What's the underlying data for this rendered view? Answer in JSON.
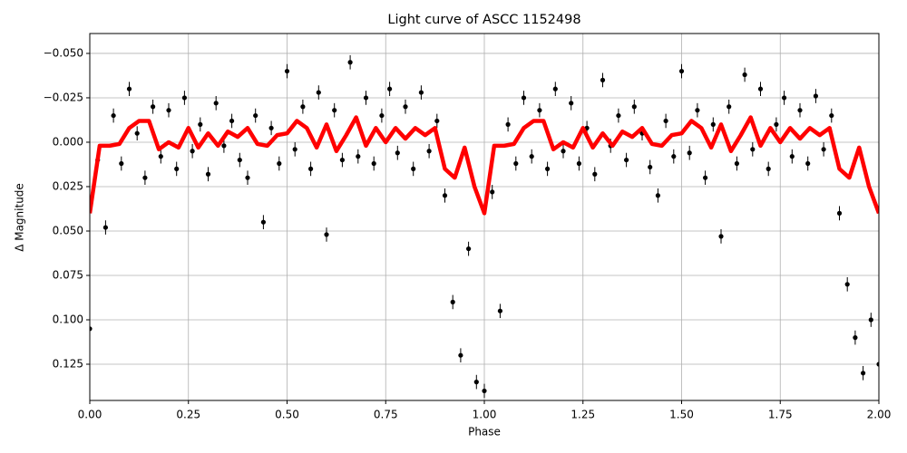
{
  "chart_data": {
    "type": "scatter",
    "title": "Light curve of ASCC 1152498",
    "xlabel": "Phase",
    "ylabel": "Δ Magnitude",
    "xlim": [
      0,
      2
    ],
    "ylim": [
      -0.0612,
      0.1454
    ],
    "y_inverted": true,
    "grid": true,
    "xticks": [
      {
        "value": 0,
        "label": "0.00"
      },
      {
        "value": 0.25,
        "label": "0.25"
      },
      {
        "value": 0.5,
        "label": "0.50"
      },
      {
        "value": 0.75,
        "label": "0.75"
      },
      {
        "value": 1,
        "label": "1.00"
      },
      {
        "value": 1.25,
        "label": "1.25"
      },
      {
        "value": 1.5,
        "label": "1.50"
      },
      {
        "value": 1.75,
        "label": "1.75"
      },
      {
        "value": 2,
        "label": "2.00"
      }
    ],
    "yticks": [
      {
        "value": -0.05,
        "label": "−0.050"
      },
      {
        "value": -0.025,
        "label": "−0.025"
      },
      {
        "value": 0,
        "label": "0.000"
      },
      {
        "value": 0.025,
        "label": "0.025"
      },
      {
        "value": 0.05,
        "label": "0.050"
      },
      {
        "value": 0.075,
        "label": "0.075"
      },
      {
        "value": 0.1,
        "label": "0.100"
      },
      {
        "value": 0.125,
        "label": "0.125"
      }
    ],
    "series": [
      {
        "kind": "points",
        "color": "#000000",
        "x": [
          0,
          0.02,
          0.04,
          0.06,
          0.08,
          0.1,
          0.12,
          0.14,
          0.16,
          0.18,
          0.2,
          0.22,
          0.24,
          0.26,
          0.28,
          0.3,
          0.32,
          0.34,
          0.36,
          0.38,
          0.4,
          0.42,
          0.44,
          0.46,
          0.48,
          0.5,
          0.52,
          0.54,
          0.56,
          0.58,
          0.6,
          0.62,
          0.64,
          0.66,
          0.68,
          0.7,
          0.72,
          0.74,
          0.76,
          0.78,
          0.8,
          0.82,
          0.84,
          0.86,
          0.88,
          0.9,
          0.92,
          0.94,
          0.96,
          0.98,
          1,
          1.02,
          1.04,
          1.06,
          1.08,
          1.1,
          1.12,
          1.14,
          1.16,
          1.18,
          1.2,
          1.22,
          1.24,
          1.26,
          1.28,
          1.3,
          1.32,
          1.34,
          1.36,
          1.38,
          1.4,
          1.42,
          1.44,
          1.46,
          1.48,
          1.5,
          1.52,
          1.54,
          1.56,
          1.58,
          1.6,
          1.62,
          1.64,
          1.66,
          1.68,
          1.7,
          1.72,
          1.74,
          1.76,
          1.78,
          1.8,
          1.82,
          1.84,
          1.86,
          1.88,
          1.9,
          1.92,
          1.94,
          1.96,
          1.98,
          2
        ],
        "values": [
          0.105,
          0.01,
          0.048,
          -0.015,
          0.012,
          -0.03,
          -0.005,
          0.02,
          -0.02,
          0.008,
          -0.018,
          0.015,
          -0.025,
          0.005,
          -0.01,
          0.018,
          -0.022,
          0.002,
          -0.012,
          0.01,
          0.02,
          -0.015,
          0.045,
          -0.008,
          0.012,
          -0.04,
          0.004,
          -0.02,
          0.015,
          -0.028,
          0.052,
          -0.018,
          0.01,
          -0.045,
          0.008,
          -0.025,
          0.012,
          -0.015,
          -0.03,
          0.006,
          -0.02,
          0.015,
          -0.028,
          0.005,
          -0.012,
          0.03,
          0.09,
          0.12,
          0.06,
          0.135,
          0.14,
          0.028,
          0.095,
          -0.01,
          0.012,
          -0.025,
          0.008,
          -0.018,
          0.015,
          -0.03,
          0.005,
          -0.022,
          0.012,
          -0.008,
          0.018,
          -0.035,
          0.002,
          -0.015,
          0.01,
          -0.02,
          -0.005,
          0.014,
          0.03,
          -0.012,
          0.008,
          -0.04,
          0.006,
          -0.018,
          0.02,
          -0.01,
          0.053,
          -0.02,
          0.012,
          -0.038,
          0.004,
          -0.03,
          0.015,
          -0.01,
          -0.025,
          0.008,
          -0.018,
          0.012,
          -0.026,
          0.004,
          -0.015,
          0.04,
          0.08,
          0.11,
          0.13,
          0.1,
          0.125
        ],
        "errors": [
          0.004,
          0.004,
          0.004,
          0.004,
          0.004,
          0.004,
          0.004,
          0.004,
          0.004,
          0.004,
          0.004,
          0.004,
          0.004,
          0.004,
          0.004,
          0.004,
          0.004,
          0.004,
          0.004,
          0.004,
          0.004,
          0.004,
          0.004,
          0.004,
          0.004,
          0.004,
          0.004,
          0.004,
          0.004,
          0.004,
          0.004,
          0.004,
          0.004,
          0.004,
          0.004,
          0.004,
          0.004,
          0.004,
          0.004,
          0.004,
          0.004,
          0.004,
          0.004,
          0.004,
          0.004,
          0.004,
          0.004,
          0.004,
          0.004,
          0.004,
          0.004,
          0.004,
          0.004,
          0.004,
          0.004,
          0.004,
          0.004,
          0.004,
          0.004,
          0.004,
          0.004,
          0.004,
          0.004,
          0.004,
          0.004,
          0.004,
          0.004,
          0.004,
          0.004,
          0.004,
          0.004,
          0.004,
          0.004,
          0.004,
          0.004,
          0.004,
          0.004,
          0.004,
          0.004,
          0.004,
          0.004,
          0.004,
          0.004,
          0.004,
          0.004,
          0.004,
          0.004,
          0.004,
          0.004,
          0.004,
          0.004,
          0.004,
          0.004,
          0.004,
          0.004,
          0.004,
          0.004,
          0.004,
          0.004,
          0.004,
          0.004
        ]
      },
      {
        "kind": "line",
        "color": "#ff0000",
        "x": [
          0,
          0.025,
          0.05,
          0.075,
          0.1,
          0.125,
          0.15,
          0.175,
          0.2,
          0.225,
          0.25,
          0.275,
          0.3,
          0.325,
          0.35,
          0.375,
          0.4,
          0.425,
          0.45,
          0.475,
          0.5,
          0.525,
          0.55,
          0.575,
          0.6,
          0.625,
          0.65,
          0.675,
          0.7,
          0.725,
          0.75,
          0.775,
          0.8,
          0.825,
          0.85,
          0.875,
          0.9,
          0.925,
          0.95,
          0.975,
          1,
          1.025,
          1.05,
          1.075,
          1.1,
          1.125,
          1.15,
          1.175,
          1.2,
          1.225,
          1.25,
          1.275,
          1.3,
          1.325,
          1.35,
          1.375,
          1.4,
          1.425,
          1.45,
          1.475,
          1.5,
          1.525,
          1.55,
          1.575,
          1.6,
          1.625,
          1.65,
          1.675,
          1.7,
          1.725,
          1.75,
          1.775,
          1.8,
          1.825,
          1.85,
          1.875,
          1.9,
          1.925,
          1.95,
          1.975,
          2
        ],
        "values": [
          0.04,
          0.002,
          0.002,
          0.001,
          -0.008,
          -0.012,
          -0.012,
          0.004,
          0.0,
          0.003,
          -0.008,
          0.003,
          -0.005,
          0.002,
          -0.006,
          -0.003,
          -0.008,
          0.001,
          0.002,
          -0.004,
          -0.005,
          -0.012,
          -0.008,
          0.003,
          -0.01,
          0.005,
          -0.004,
          -0.014,
          0.002,
          -0.008,
          0.0,
          -0.008,
          -0.002,
          -0.008,
          -0.004,
          -0.008,
          0.015,
          0.02,
          0.003,
          0.025,
          0.04,
          0.002,
          0.002,
          0.001,
          -0.008,
          -0.012,
          -0.012,
          0.004,
          0.0,
          0.003,
          -0.008,
          0.003,
          -0.005,
          0.002,
          -0.006,
          -0.003,
          -0.008,
          0.001,
          0.002,
          -0.004,
          -0.005,
          -0.012,
          -0.008,
          0.003,
          -0.01,
          0.005,
          -0.004,
          -0.014,
          0.002,
          -0.008,
          0.0,
          -0.008,
          -0.002,
          -0.008,
          -0.004,
          -0.008,
          0.015,
          0.02,
          0.003,
          0.025,
          0.04
        ]
      }
    ]
  }
}
